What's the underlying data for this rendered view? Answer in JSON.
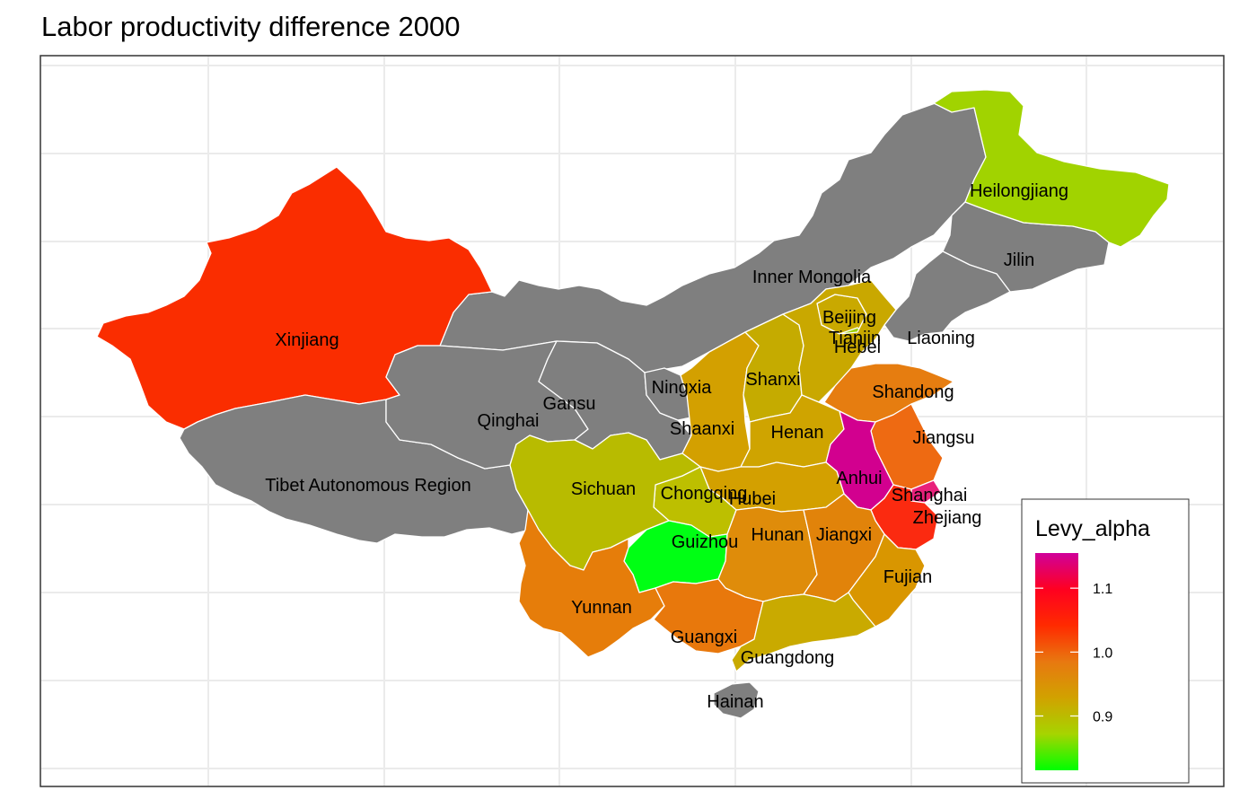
{
  "title": "Labor productivity difference 2000",
  "colors": {
    "na": "#7f7f7f",
    "grid": "#ebebeb",
    "border": "#333333"
  },
  "legend": {
    "title": "Levy_alpha",
    "range": [
      0.815,
      1.155
    ],
    "ticks": [
      {
        "value": 1.1,
        "label": "1.1"
      },
      {
        "value": 1.0,
        "label": "1.0"
      },
      {
        "value": 0.9,
        "label": "0.9"
      }
    ],
    "gradient": [
      "#00ff00",
      "#a6d400",
      "#d1a200",
      "#e87810",
      "#ff2a00",
      "#ff0020",
      "#d0009a"
    ]
  },
  "provinces": [
    {
      "id": "xinjiang",
      "label": "Xinjiang",
      "color": "#fa2d00"
    },
    {
      "id": "tibet",
      "label": "Tibet Autonomous Region",
      "color": "#7f7f7f"
    },
    {
      "id": "qinghai",
      "label": "Qinghai",
      "color": "#7f7f7f"
    },
    {
      "id": "gansu",
      "label": "Gansu",
      "color": "#7f7f7f"
    },
    {
      "id": "inner-mongolia",
      "label": "Inner Mongolia",
      "color": "#7f7f7f"
    },
    {
      "id": "ningxia",
      "label": "Ningxia",
      "color": "#7f7f7f"
    },
    {
      "id": "heilongjiang",
      "label": "Heilongjiang",
      "color": "#a1d300"
    },
    {
      "id": "jilin",
      "label": "Jilin",
      "color": "#7f7f7f"
    },
    {
      "id": "liaoning",
      "label": "Liaoning",
      "color": "#7f7f7f"
    },
    {
      "id": "beijing",
      "label": "Beijing",
      "color": "#c9a900"
    },
    {
      "id": "tianjin",
      "label": "Tianjin",
      "color": "#9bd000"
    },
    {
      "id": "hebei",
      "label": "Hebei",
      "color": "#c9a800"
    },
    {
      "id": "shanxi",
      "label": "Shanxi",
      "color": "#c5ab00"
    },
    {
      "id": "shaanxi",
      "label": "Shaanxi",
      "color": "#d3a000"
    },
    {
      "id": "shandong",
      "label": "Shandong",
      "color": "#e67d10"
    },
    {
      "id": "henan",
      "label": "Henan",
      "color": "#cfa400"
    },
    {
      "id": "jiangsu",
      "label": "Jiangsu",
      "color": "#ee6a12"
    },
    {
      "id": "anhui",
      "label": "Anhui",
      "color": "#d2008f"
    },
    {
      "id": "shanghai",
      "label": "Shanghai",
      "color": "#e8207a"
    },
    {
      "id": "zhejiang",
      "label": "Zhejiang",
      "color": "#fb2a10"
    },
    {
      "id": "hubei",
      "label": "Hubei",
      "color": "#d3a000"
    },
    {
      "id": "chongqing",
      "label": "Chongqing",
      "color": "#bdbf00"
    },
    {
      "id": "sichuan",
      "label": "Sichuan",
      "color": "#b8bb00"
    },
    {
      "id": "guizhou",
      "label": "Guizhou",
      "color": "#00ff14"
    },
    {
      "id": "hunan",
      "label": "Hunan",
      "color": "#df8c0a"
    },
    {
      "id": "jiangxi",
      "label": "Jiangxi",
      "color": "#e1830a"
    },
    {
      "id": "fujian",
      "label": "Fujian",
      "color": "#d99600"
    },
    {
      "id": "yunnan",
      "label": "Yunnan",
      "color": "#e67d0a"
    },
    {
      "id": "guangxi",
      "label": "Guangxi",
      "color": "#e8780c"
    },
    {
      "id": "guangdong",
      "label": "Guangdong",
      "color": "#c9aa00"
    },
    {
      "id": "hainan",
      "label": "Hainan",
      "color": "#7f7f7f"
    }
  ]
}
